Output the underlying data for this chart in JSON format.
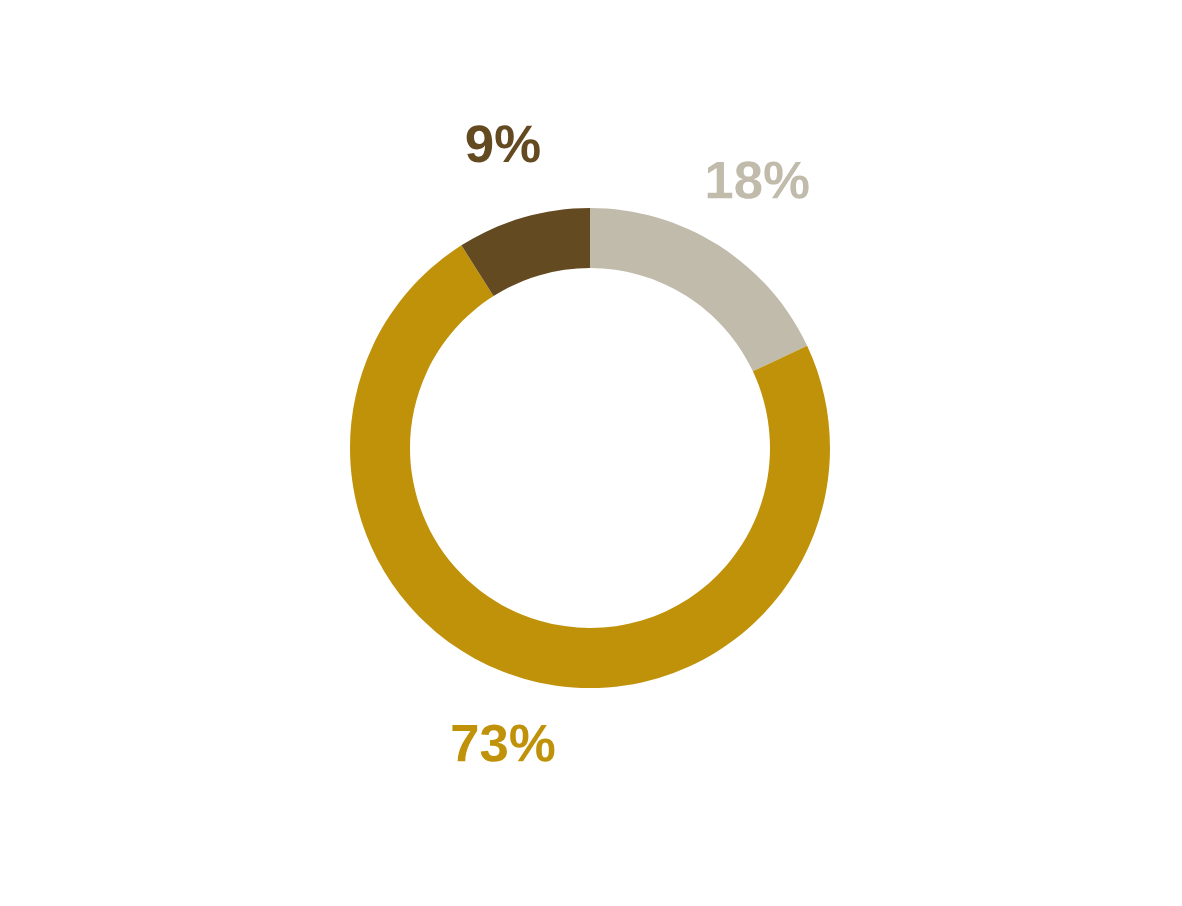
{
  "chart_data": {
    "type": "donut",
    "categories": [
      null,
      null,
      null
    ],
    "values": [
      18,
      73,
      9
    ],
    "colors": [
      "#c0bbab",
      "#c0920a",
      "#634a20"
    ],
    "value_labels": [
      "18%",
      "73%",
      "9%"
    ],
    "legend": false
  }
}
